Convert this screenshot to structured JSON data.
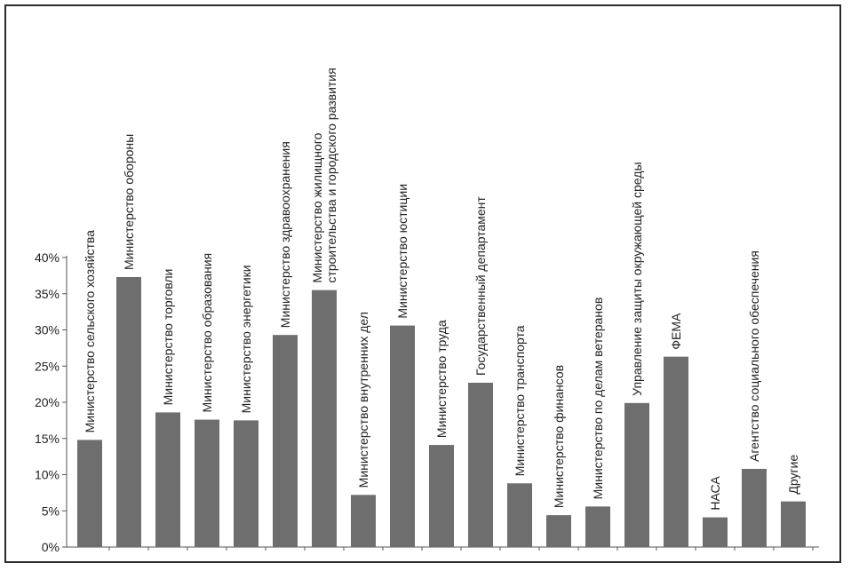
{
  "chart_data": {
    "type": "bar",
    "title": "",
    "xlabel": "",
    "ylabel": "",
    "ylim": [
      0,
      40
    ],
    "y_ticks": [
      "0%",
      "5%",
      "10%",
      "15%",
      "20%",
      "25%",
      "30%",
      "35%",
      "40%"
    ],
    "grid": false,
    "bar_color": "#6e6e6e",
    "categories": [
      [
        "Министерство сельского хозяйства"
      ],
      [
        "Министерство обороны"
      ],
      [
        "Министерство торговли"
      ],
      [
        "Министерство образования"
      ],
      [
        "Министерство энергетики"
      ],
      [
        "Министерство здравоохранения"
      ],
      [
        "Министерство жилищного",
        "строительства и городского развития"
      ],
      [
        "Министерство внутренних дел"
      ],
      [
        "Министерство юстиции"
      ],
      [
        "Министерство труда"
      ],
      [
        "Государственный департамент"
      ],
      [
        "Министерство транспорта"
      ],
      [
        "Министерство финансов"
      ],
      [
        "Министерство по делам ветеранов"
      ],
      [
        "Управление защиты окружающей среды"
      ],
      [
        "ФЕМА"
      ],
      [
        "НАСА"
      ],
      [
        "Агентство социального обеспечения"
      ],
      [
        "Другие"
      ]
    ],
    "values": [
      14.8,
      37.3,
      18.6,
      17.6,
      17.5,
      29.3,
      35.5,
      7.2,
      30.6,
      14.1,
      22.7,
      8.8,
      4.4,
      5.6,
      19.9,
      26.3,
      4.1,
      10.8,
      6.3
    ]
  }
}
